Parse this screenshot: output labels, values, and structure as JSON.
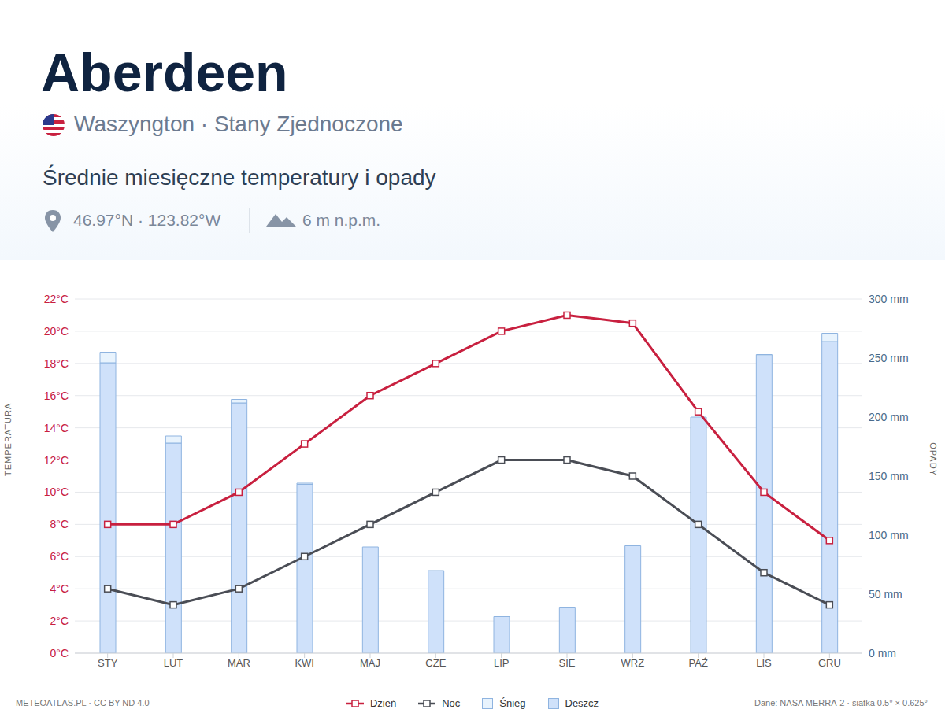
{
  "chart_data": {
    "type": "combo",
    "title": "Aberdeen",
    "subtitle": "Waszyngton · Stany Zjednoczone",
    "description": "Średnie miesięczne temperatury i opady",
    "location": "46.97°N · 123.82°W",
    "elevation": "6 m n.p.m.",
    "credit": "METEOATLAS.PL · CC BY-ND 4.0",
    "source": "Dane: NASA MERRA-2 · siatka 0.5° × 0.625°",
    "ylabel": "TEMPERATURA",
    "y2label": "OPADY",
    "categories": [
      "STY",
      "LUT",
      "MAR",
      "KWI",
      "MAJ",
      "CZE",
      "LIP",
      "SIE",
      "WRZ",
      "PAŹ",
      "LIS",
      "GRU"
    ],
    "series": [
      {
        "name": "Dzień",
        "type": "line",
        "color": "#c8203f",
        "marker": "square",
        "values": [
          8,
          8,
          10,
          13,
          16,
          18,
          20,
          21,
          20.5,
          15,
          10,
          7
        ]
      },
      {
        "name": "Noc",
        "type": "line",
        "color": "#4a4d55",
        "marker": "square",
        "values": [
          4,
          3,
          4,
          6,
          8,
          10,
          12,
          12,
          11,
          8,
          5,
          3
        ]
      },
      {
        "name": "Śnieg",
        "type": "bar",
        "axis": "y2",
        "color": "#e8f3fd",
        "values": [
          9,
          6,
          3,
          1,
          0,
          0,
          0,
          0,
          0,
          0,
          1,
          7
        ]
      },
      {
        "name": "Deszcz",
        "type": "bar",
        "axis": "y2",
        "color": "#cfe1fa",
        "values": [
          246,
          178,
          212,
          143,
          90,
          70,
          31,
          39,
          91,
          200,
          252,
          264
        ]
      }
    ],
    "stacked": true,
    "ylim": [
      0,
      22
    ],
    "yticks": [
      {
        "value": 0,
        "label": "0°C"
      },
      {
        "value": 2,
        "label": "2°C"
      },
      {
        "value": 4,
        "label": "4°C"
      },
      {
        "value": 6,
        "label": "6°C"
      },
      {
        "value": 8,
        "label": "8°C"
      },
      {
        "value": 10,
        "label": "10°C"
      },
      {
        "value": 12,
        "label": "12°C"
      },
      {
        "value": 14,
        "label": "14°C"
      },
      {
        "value": 16,
        "label": "16°C"
      },
      {
        "value": 18,
        "label": "18°C"
      },
      {
        "value": 20,
        "label": "20°C"
      },
      {
        "value": 22,
        "label": "22°C"
      }
    ],
    "y2lim": [
      0,
      300
    ],
    "y2ticks": [
      {
        "value": 0,
        "label": "0 mm"
      },
      {
        "value": 50,
        "label": "50 mm"
      },
      {
        "value": 100,
        "label": "100 mm"
      },
      {
        "value": 150,
        "label": "150 mm"
      },
      {
        "value": 200,
        "label": "200 mm"
      },
      {
        "value": 250,
        "label": "250 mm"
      },
      {
        "value": 300,
        "label": "300 mm"
      }
    ],
    "grid": true,
    "legend": "bottom"
  }
}
